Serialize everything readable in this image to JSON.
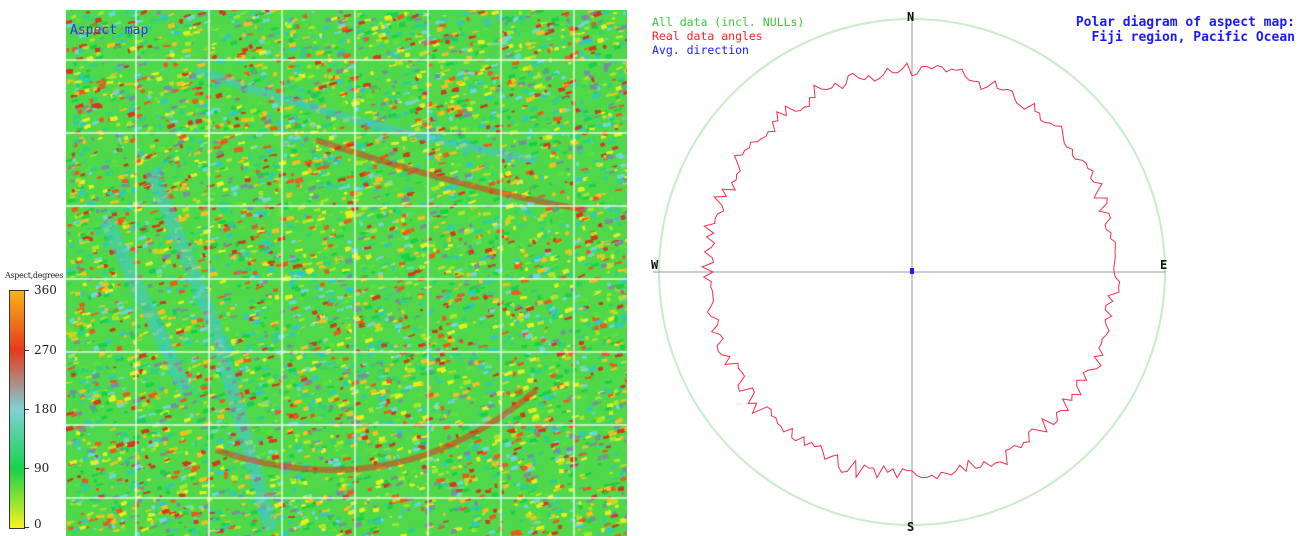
{
  "map": {
    "label": "Aspect map"
  },
  "colorbar": {
    "title": "Aspect,degrees",
    "ticks": [
      "360",
      "270",
      "180",
      "90",
      "0"
    ]
  },
  "polar": {
    "title_line1": "Polar diagram of aspect map:",
    "title_line2": "Fiji region, Pacific Ocean",
    "legend": [
      {
        "label": "All data (incl. NULLs)",
        "color": "#3cc83c"
      },
      {
        "label": "Real data angles",
        "color": "#ff2020"
      },
      {
        "label": "Avg. direction",
        "color": "#1a1aff"
      }
    ],
    "compass": {
      "north": "N",
      "south": "S",
      "east": "E",
      "west": "W"
    },
    "outer_circle_color": "#c8ecc8",
    "real_data_color": "#f0304a",
    "avg_direction_color": "#1a1aff"
  }
}
